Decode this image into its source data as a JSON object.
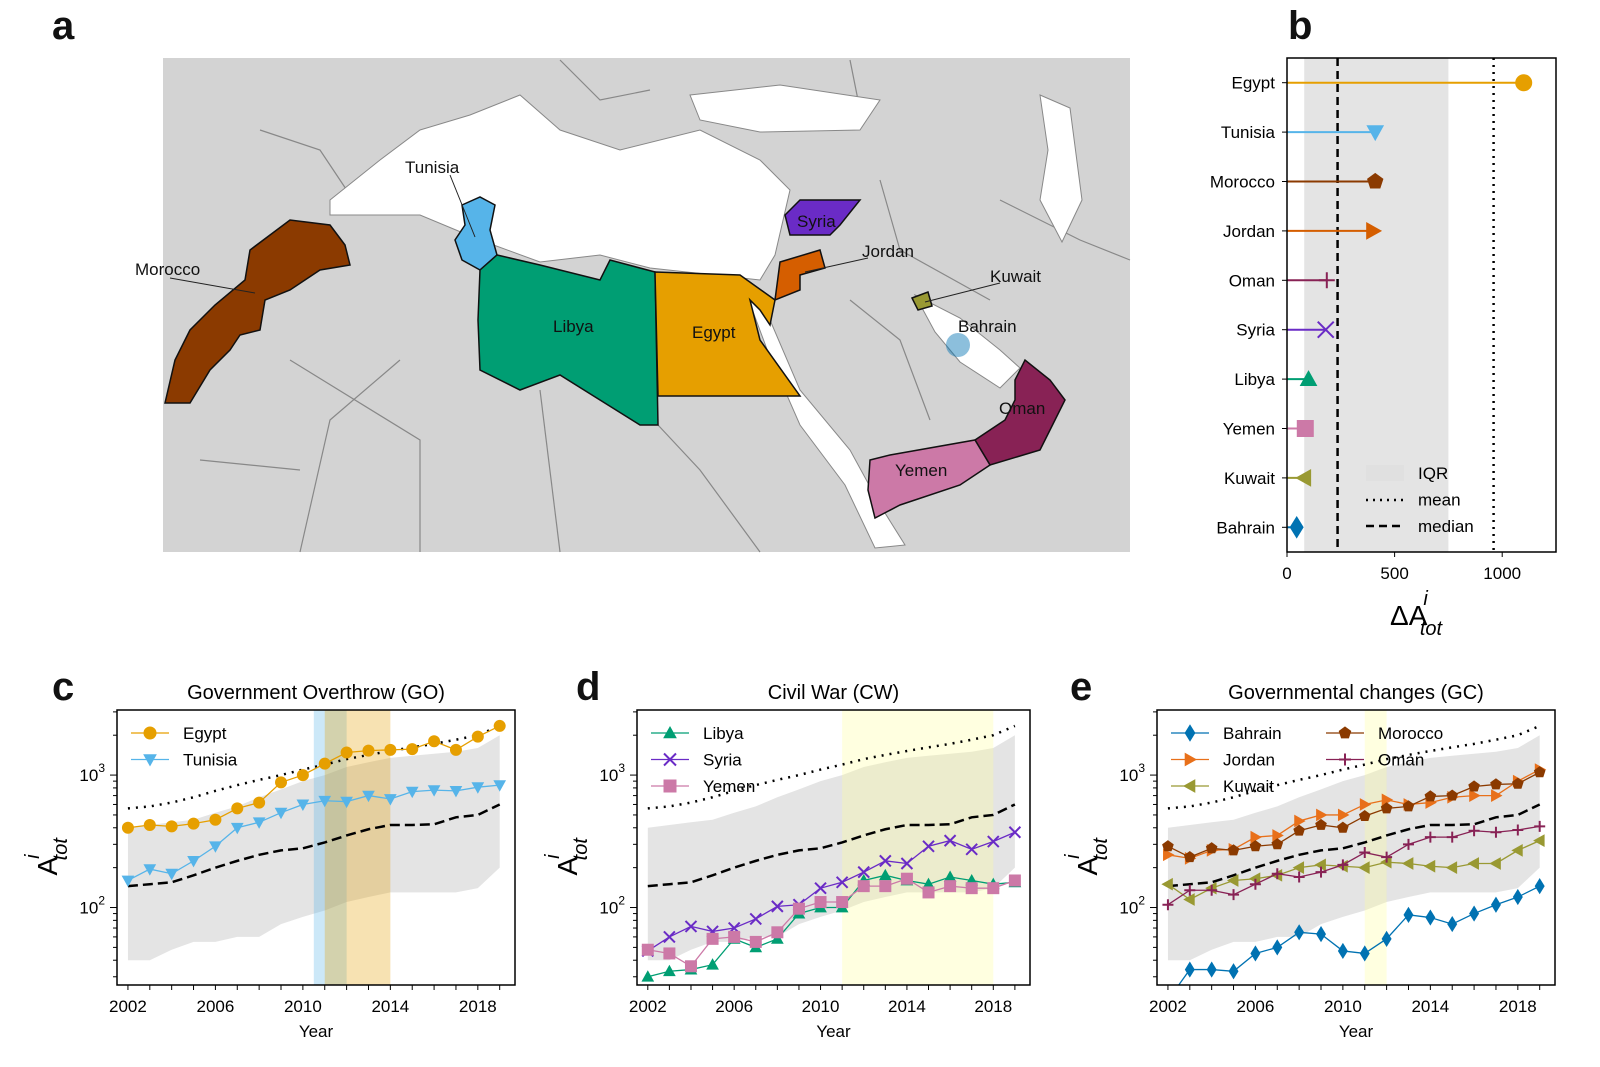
{
  "panel_labels": {
    "a": "a",
    "b": "b",
    "c": "c",
    "d": "d",
    "e": "e"
  },
  "map": {
    "countries": [
      {
        "name": "Morocco",
        "color": "#8b3a00"
      },
      {
        "name": "Tunisia",
        "color": "#56b4e9"
      },
      {
        "name": "Libya",
        "color": "#009e73"
      },
      {
        "name": "Egypt",
        "color": "#e69f00"
      },
      {
        "name": "Syria",
        "color": "#6a2bc6"
      },
      {
        "name": "Jordan",
        "color": "#d55e00"
      },
      {
        "name": "Kuwait",
        "color": "#999933"
      },
      {
        "name": "Bahrain",
        "color": "#0072b2"
      },
      {
        "name": "Oman",
        "color": "#882255"
      },
      {
        "name": "Yemen",
        "color": "#cc79a7"
      }
    ],
    "land_color": "#d3d3d3",
    "sea_color": "#ffffff"
  },
  "chart_data": [
    {
      "panel": "b",
      "type": "lollipop",
      "xlabel": "ΔA",
      "xlabel_sup": "i",
      "xlabel_sub": "tot",
      "xlim": [
        0,
        1250
      ],
      "xticks": [
        0,
        500,
        1000
      ],
      "categories": [
        "Egypt",
        "Tunisia",
        "Morocco",
        "Jordan",
        "Oman",
        "Syria",
        "Libya",
        "Yemen",
        "Kuwait",
        "Bahrain"
      ],
      "values": [
        1100,
        410,
        410,
        400,
        185,
        180,
        100,
        85,
        80,
        45
      ],
      "markers": [
        "circle",
        "triangle-down",
        "pentagon",
        "triangle-right",
        "plus",
        "x",
        "triangle-up",
        "square",
        "triangle-left",
        "diamond"
      ],
      "colors": [
        "#e69f00",
        "#56b4e9",
        "#8b3a00",
        "#d55e00",
        "#882255",
        "#6a2bc6",
        "#009e73",
        "#cc79a7",
        "#999933",
        "#0072b2"
      ],
      "iqr": [
        80,
        750
      ],
      "mean": 960,
      "median": 235,
      "legend": [
        {
          "label": "IQR"
        },
        {
          "label": "mean"
        },
        {
          "label": "median"
        }
      ],
      "legend_position": "lower-right"
    },
    {
      "panel": "c",
      "type": "line",
      "title": "Government Overthrow (GO)",
      "xlabel": "Year",
      "ylabel": "A",
      "ylabel_sup": "i",
      "ylabel_sub": "tot",
      "yscale": "log",
      "ylim": [
        26,
        3100
      ],
      "xlim": [
        2001.5,
        2019.7
      ],
      "xticks": [
        2002,
        2006,
        2010,
        2014,
        2018
      ],
      "x": [
        2002,
        2003,
        2004,
        2005,
        2006,
        2007,
        2008,
        2009,
        2010,
        2011,
        2012,
        2013,
        2014,
        2015,
        2016,
        2017,
        2018,
        2019
      ],
      "series": [
        {
          "name": "Egypt",
          "marker": "circle",
          "color": "#e69f00",
          "values": [
            400,
            420,
            410,
            430,
            460,
            560,
            620,
            880,
            1000,
            1220,
            1480,
            1530,
            1550,
            1570,
            1800,
            1550,
            1950,
            2350
          ]
        },
        {
          "name": "Tunisia",
          "marker": "triangle-down",
          "color": "#56b4e9",
          "values": [
            160,
            195,
            180,
            225,
            290,
            400,
            440,
            520,
            600,
            640,
            630,
            700,
            660,
            750,
            770,
            760,
            810,
            840
          ]
        }
      ],
      "mean": [
        560,
        580,
        620,
        680,
        760,
        840,
        920,
        1000,
        1100,
        1200,
        1320,
        1420,
        1520,
        1620,
        1720,
        1850,
        2000,
        2350
      ],
      "median": [
        145,
        150,
        155,
        175,
        200,
        225,
        250,
        270,
        280,
        310,
        350,
        390,
        420,
        420,
        425,
        480,
        500,
        600
      ],
      "iqr_low": [
        40,
        40,
        48,
        55,
        55,
        60,
        60,
        75,
        85,
        95,
        110,
        120,
        130,
        130,
        130,
        130,
        140,
        200
      ],
      "iqr_high": [
        400,
        420,
        440,
        460,
        520,
        580,
        680,
        780,
        900,
        1000,
        1150,
        1250,
        1350,
        1400,
        1450,
        1500,
        1600,
        2000
      ],
      "highlights": [
        {
          "from": 2010.5,
          "to": 2012,
          "color": "#56b4e9"
        },
        {
          "from": 2011,
          "to": 2014,
          "color": "#e69f00"
        }
      ],
      "legend_position": "upper-left"
    },
    {
      "panel": "d",
      "type": "line",
      "title": "Civil War (CW)",
      "xlabel": "Year",
      "ylabel": "A",
      "ylabel_sup": "i",
      "ylabel_sub": "tot",
      "yscale": "log",
      "ylim": [
        26,
        3100
      ],
      "xlim": [
        2001.5,
        2019.7
      ],
      "xticks": [
        2002,
        2006,
        2010,
        2014,
        2018
      ],
      "x": [
        2002,
        2003,
        2004,
        2005,
        2006,
        2007,
        2008,
        2009,
        2010,
        2011,
        2012,
        2013,
        2014,
        2015,
        2016,
        2017,
        2018,
        2019
      ],
      "series": [
        {
          "name": "Libya",
          "marker": "triangle-up",
          "color": "#009e73",
          "values": [
            30,
            33,
            34,
            37,
            58,
            50,
            58,
            90,
            100,
            100,
            160,
            175,
            160,
            150,
            170,
            160,
            150,
            155
          ]
        },
        {
          "name": "Syria",
          "marker": "x",
          "color": "#6a2bc6",
          "values": [
            47,
            60,
            72,
            66,
            70,
            82,
            102,
            105,
            140,
            155,
            185,
            225,
            215,
            290,
            320,
            275,
            315,
            370
          ]
        },
        {
          "name": "Yemen",
          "marker": "square",
          "color": "#cc79a7",
          "values": [
            48,
            45,
            36,
            58,
            60,
            55,
            65,
            98,
            110,
            110,
            145,
            145,
            165,
            130,
            145,
            140,
            140,
            160
          ]
        }
      ],
      "mean": [
        560,
        580,
        620,
        680,
        760,
        840,
        920,
        1000,
        1100,
        1200,
        1320,
        1420,
        1520,
        1620,
        1720,
        1850,
        2000,
        2350
      ],
      "median": [
        145,
        150,
        155,
        175,
        200,
        225,
        250,
        270,
        280,
        310,
        350,
        390,
        420,
        420,
        425,
        480,
        500,
        600
      ],
      "iqr_low": [
        40,
        40,
        48,
        55,
        55,
        60,
        60,
        75,
        85,
        95,
        110,
        120,
        130,
        130,
        130,
        130,
        140,
        200
      ],
      "iqr_high": [
        400,
        420,
        440,
        460,
        520,
        580,
        680,
        780,
        900,
        1000,
        1150,
        1250,
        1350,
        1400,
        1450,
        1500,
        1600,
        2000
      ],
      "highlights": [
        {
          "from": 2011,
          "to": 2018,
          "color": "#ffff99"
        }
      ],
      "legend_position": "upper-left"
    },
    {
      "panel": "e",
      "type": "line",
      "title": "Governmental changes (GC)",
      "xlabel": "Year",
      "ylabel": "A",
      "ylabel_sup": "i",
      "ylabel_sub": "tot",
      "yscale": "log",
      "ylim": [
        26,
        3100
      ],
      "xlim": [
        2001.5,
        2019.7
      ],
      "xticks": [
        2002,
        2006,
        2010,
        2014,
        2018
      ],
      "x": [
        2002,
        2003,
        2004,
        2005,
        2006,
        2007,
        2008,
        2009,
        2010,
        2011,
        2012,
        2013,
        2014,
        2015,
        2016,
        2017,
        2018,
        2019
      ],
      "series": [
        {
          "name": "Bahrain",
          "marker": "diamond",
          "color": "#0072b2",
          "values": [
            20,
            34,
            34,
            33,
            45,
            50,
            65,
            63,
            47,
            45,
            58,
            88,
            84,
            75,
            90,
            105,
            120,
            145
          ]
        },
        {
          "name": "Jordan",
          "marker": "triangle-right",
          "color": "#e8701a",
          "values": [
            250,
            235,
            270,
            275,
            340,
            350,
            450,
            500,
            500,
            600,
            650,
            600,
            620,
            680,
            700,
            700,
            900,
            1100
          ]
        },
        {
          "name": "Kuwait",
          "marker": "triangle-left",
          "color": "#999933",
          "values": [
            150,
            115,
            140,
            160,
            165,
            175,
            200,
            210,
            205,
            200,
            220,
            215,
            205,
            200,
            215,
            215,
            270,
            320
          ]
        },
        {
          "name": "Morocco",
          "marker": "pentagon",
          "color": "#8b3a00",
          "values": [
            290,
            240,
            280,
            270,
            290,
            300,
            380,
            420,
            400,
            490,
            560,
            580,
            690,
            700,
            820,
            850,
            860,
            1050
          ]
        },
        {
          "name": "Oman",
          "marker": "plus",
          "color": "#882255",
          "values": [
            105,
            135,
            135,
            125,
            150,
            180,
            170,
            185,
            210,
            260,
            240,
            300,
            340,
            340,
            380,
            370,
            385,
            410
          ]
        }
      ],
      "mean": [
        560,
        580,
        620,
        680,
        760,
        840,
        920,
        1000,
        1100,
        1200,
        1320,
        1420,
        1520,
        1620,
        1720,
        1850,
        2000,
        2350
      ],
      "median": [
        145,
        150,
        155,
        175,
        200,
        225,
        250,
        270,
        280,
        310,
        350,
        390,
        420,
        420,
        425,
        480,
        500,
        600
      ],
      "iqr_low": [
        40,
        40,
        48,
        55,
        55,
        60,
        60,
        75,
        85,
        95,
        110,
        120,
        130,
        130,
        130,
        130,
        140,
        200
      ],
      "iqr_high": [
        400,
        420,
        440,
        460,
        520,
        580,
        680,
        780,
        900,
        1000,
        1150,
        1250,
        1350,
        1400,
        1450,
        1500,
        1600,
        2000
      ],
      "highlights": [
        {
          "from": 2011,
          "to": 2012,
          "color": "#ffff99"
        }
      ],
      "legend_position": "upper-left",
      "legend_columns": 2
    }
  ]
}
